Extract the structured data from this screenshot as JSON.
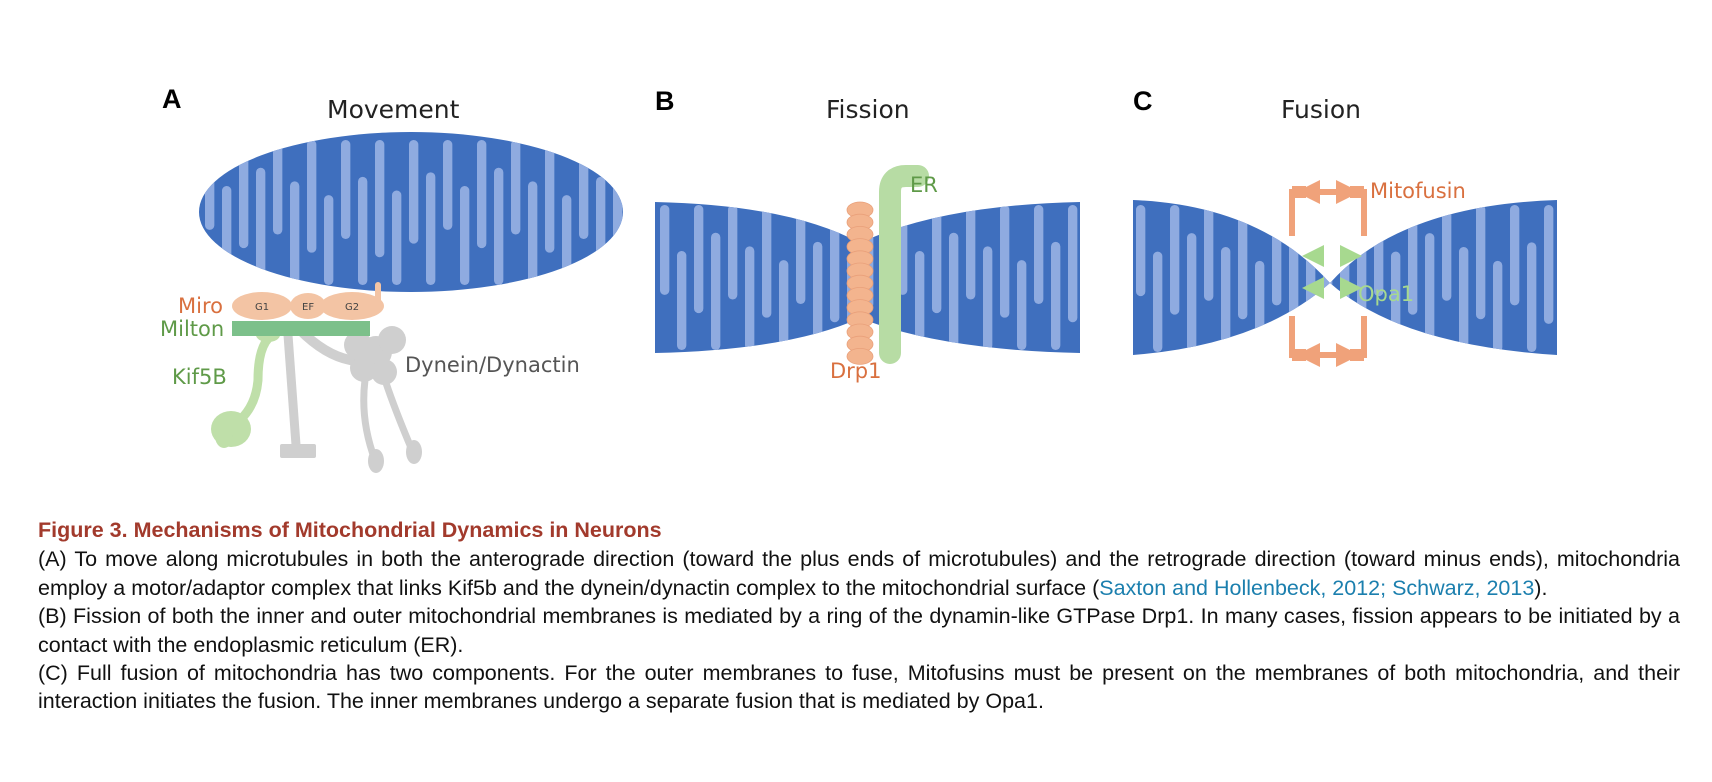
{
  "panels": [
    {
      "letter": "A",
      "title": "Movement",
      "labels": {
        "miro": "Miro",
        "milton": "Milton",
        "kif5b": "Kif5B",
        "dynein": "Dynein/Dynactin",
        "g1": "G1",
        "ef": "EF",
        "g2": "G2"
      }
    },
    {
      "letter": "B",
      "title": "Fission",
      "labels": {
        "er": "ER",
        "drp1": "Drp1"
      }
    },
    {
      "letter": "C",
      "title": "Fusion",
      "labels": {
        "mitofusin": "Mitofusin",
        "opa1": "Opa1"
      }
    }
  ],
  "colors": {
    "mito": "#3f6fbe",
    "cristae": "#8fabe0",
    "miro": "#f3c4a4",
    "milton": "#7cc08a",
    "kif5b": "#bfdfa9",
    "dynein": "#cfcfcf",
    "drp1": "#f3b48e",
    "er": "#b7dca4",
    "mitofusin": "#f0a27a",
    "opa1": "#a7d98f",
    "label_orange": "#d9703f",
    "label_green": "#5f9a48",
    "caption_title": "#a23a2c",
    "link": "#1b7fae"
  },
  "caption": {
    "title": "Figure 3.  Mechanisms of Mitochondrial Dynamics in Neurons",
    "a_text": "(A) To move along microtubules in both the anterograde direction (toward the plus ends of microtubules) and the retrograde direction (toward minus ends), mitochondria employ a motor/adaptor complex that links Kif5b and the dynein/dynactin complex to the mitochondrial surface (",
    "a_ref": "Saxton and Hollenbeck, 2012; Schwarz, 2013",
    "a_end": ").",
    "b_text": "(B) Fission of both the inner and outer mitochondrial membranes is mediated by a ring of the dynamin-like GTPase Drp1. In many cases, fission appears to be initiated by a contact with the endoplasmic reticulum (ER).",
    "c_text": "(C) Full fusion of mitochondria has two components. For the outer membranes to fuse, Mitofusins must be present on the membranes of both mitochondria, and their interaction initiates the fusion. The inner membranes undergo a separate fusion that is mediated by Opa1."
  }
}
